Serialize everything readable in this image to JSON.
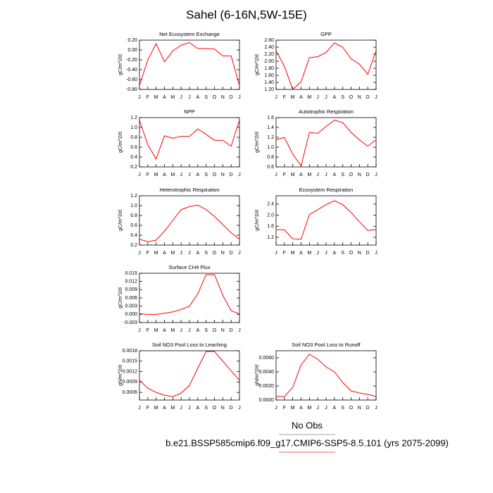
{
  "title": "Sahel (6-16N,5W-15E)",
  "footer": {
    "obs": "No Obs",
    "case": "b.e21.BSSP585cmip6.f09_g17.CMIP6-SSP5-8.5.101 (yrs 2075-2099)"
  },
  "chart_data": [
    {
      "type": "line",
      "title": "Net Ecosystem Exchange",
      "ylabel": "gC/m^2/d",
      "color": "#ff0000",
      "categories": [
        "J",
        "F",
        "M",
        "A",
        "M",
        "J",
        "J",
        "A",
        "S",
        "O",
        "N",
        "D",
        "J"
      ],
      "values": [
        -0.72,
        -0.2,
        0.13,
        -0.24,
        -0.02,
        0.1,
        0.15,
        0.03,
        0.03,
        0.02,
        -0.12,
        -0.12,
        -0.72
      ],
      "ylim": [
        -0.8,
        0.2
      ],
      "yticks": [
        {
          "value": -0.8,
          "label": "-0.80"
        },
        {
          "value": -0.6,
          "label": "-0.60"
        },
        {
          "value": -0.4,
          "label": "-0.40"
        },
        {
          "value": -0.2,
          "label": "-0.20"
        },
        {
          "value": 0,
          "label": "0.00"
        },
        {
          "value": 0.2,
          "label": "0.20"
        }
      ]
    },
    {
      "type": "line",
      "title": "GPP",
      "ylabel": "gC/m^2/d",
      "color": "#ff0000",
      "categories": [
        "J",
        "F",
        "M",
        "A",
        "M",
        "J",
        "J",
        "A",
        "S",
        "O",
        "N",
        "D",
        "J"
      ],
      "values": [
        2.3,
        1.85,
        1.2,
        1.42,
        2.1,
        2.13,
        2.25,
        2.52,
        2.4,
        2.07,
        1.92,
        1.63,
        2.3
      ],
      "ylim": [
        1.2,
        2.6
      ],
      "yticks": [
        {
          "value": 1.2,
          "label": "1.20"
        },
        {
          "value": 1.4,
          "label": "1.40"
        },
        {
          "value": 1.6,
          "label": "1.60"
        },
        {
          "value": 1.8,
          "label": "1.80"
        },
        {
          "value": 2,
          "label": "2.00"
        },
        {
          "value": 2.2,
          "label": "2.20"
        },
        {
          "value": 2.4,
          "label": "2.40"
        },
        {
          "value": 2.6,
          "label": "2.60"
        }
      ]
    },
    {
      "type": "line",
      "title": "NPP",
      "ylabel": "gC/m^2/d",
      "color": "#ff0000",
      "categories": [
        "J",
        "F",
        "M",
        "A",
        "M",
        "J",
        "J",
        "A",
        "S",
        "O",
        "N",
        "D",
        "J"
      ],
      "values": [
        1.15,
        0.65,
        0.36,
        0.83,
        0.78,
        0.82,
        0.82,
        0.97,
        0.86,
        0.74,
        0.74,
        0.62,
        1.15
      ],
      "ylim": [
        0.2,
        1.2
      ],
      "yticks": [
        0.2,
        0.4,
        0.6,
        0.8,
        {
          "value": 1,
          "label": "1.0"
        },
        1.2
      ]
    },
    {
      "type": "line",
      "title": "Autotrophic Respiration",
      "ylabel": "gC/m^2/d",
      "color": "#ff0000",
      "categories": [
        "J",
        "F",
        "M",
        "A",
        "M",
        "J",
        "J",
        "A",
        "S",
        "O",
        "N",
        "D",
        "J"
      ],
      "values": [
        1.15,
        1.2,
        0.86,
        0.62,
        1.3,
        1.28,
        1.42,
        1.55,
        1.5,
        1.3,
        1.15,
        1.02,
        1.15
      ],
      "ylim": [
        0.6,
        1.6
      ],
      "yticks": [
        0.6,
        0.8,
        {
          "value": 1,
          "label": "1.0"
        },
        1.2,
        1.4,
        1.6
      ]
    },
    {
      "type": "line",
      "title": "Heterotrophic Respiration",
      "ylabel": "gC/m^2/d",
      "color": "#ff0000",
      "categories": [
        "J",
        "F",
        "M",
        "A",
        "M",
        "J",
        "J",
        "A",
        "S",
        "O",
        "N",
        "D",
        "J"
      ],
      "values": [
        0.32,
        0.27,
        0.3,
        0.48,
        0.7,
        0.92,
        0.98,
        1.01,
        0.92,
        0.78,
        0.62,
        0.45,
        0.32
      ],
      "ylim": [
        0.2,
        1.2
      ],
      "yticks": [
        0.2,
        0.4,
        0.6,
        0.8,
        {
          "value": 1,
          "label": "1.0"
        },
        1.2
      ]
    },
    {
      "type": "line",
      "title": "Ecosystem Respiration",
      "ylabel": "gC/m^2/d",
      "color": "#ff0000",
      "categories": [
        "J",
        "F",
        "M",
        "A",
        "M",
        "J",
        "J",
        "A",
        "S",
        "O",
        "N",
        "D",
        "J"
      ],
      "values": [
        1.48,
        1.47,
        1.15,
        1.13,
        2.02,
        2.2,
        2.38,
        2.52,
        2.38,
        2.1,
        1.76,
        1.45,
        1.48
      ],
      "ylim": [
        0.92,
        2.7
      ],
      "yticks": [
        1.2,
        1.6,
        {
          "value": 2,
          "label": "2.0"
        },
        2.4
      ]
    },
    {
      "type": "line",
      "title": "Surface CH4 Flux",
      "ylabel": "gC/m^2/d",
      "color": "#ff0000",
      "categories": [
        "J",
        "F",
        "M",
        "A",
        "M",
        "J",
        "J",
        "A",
        "S",
        "O",
        "N",
        "D",
        "J"
      ],
      "values": [
        0.0002,
        0,
        0,
        0.0004,
        0.0009,
        0.0018,
        0.003,
        0.0075,
        0.0145,
        0.0145,
        0.007,
        0.0013,
        0.0002
      ],
      "ylim": [
        -0.003,
        0.015
      ],
      "yticks": [
        -0.003,
        {
          "value": 0,
          "label": "0.000"
        },
        0.003,
        0.006,
        0.009,
        0.012,
        0.015
      ]
    },
    {
      "type": "line",
      "title": "Soil NO3 Pool Loss to Leaching",
      "ylabel": "gN/m^2/d",
      "color": "#ff0000",
      "categories": [
        "J",
        "F",
        "M",
        "A",
        "M",
        "J",
        "J",
        "A",
        "S",
        "O",
        "N",
        "D",
        "J"
      ],
      "values": [
        0.00095,
        0.00072,
        0.0006,
        0.00052,
        0.00048,
        0.00058,
        0.0008,
        0.0013,
        0.00178,
        0.00178,
        0.0015,
        0.00122,
        0.00095
      ],
      "ylim": [
        0.00038,
        0.0018
      ],
      "yticks": [
        0.0006,
        0.0009,
        0.0012,
        0.0015,
        0.0018
      ]
    },
    {
      "type": "line",
      "title": "Soil NO3 Pool Loss to Runoff",
      "ylabel": "gN/m^2/d",
      "color": "#ff0000",
      "categories": [
        "J",
        "F",
        "M",
        "A",
        "M",
        "J",
        "J",
        "A",
        "S",
        "O",
        "N",
        "D",
        "J"
      ],
      "values": [
        0.0005,
        0.0005,
        0.0018,
        0.005,
        0.0065,
        0.0058,
        0.0047,
        0.004,
        0.0025,
        0.0013,
        0.001,
        0.0008,
        0.0005
      ],
      "ylim": [
        0,
        0.007
      ],
      "yticks": [
        {
          "value": 0,
          "label": "0.0000"
        },
        {
          "value": 0.002,
          "label": "0.0020"
        },
        {
          "value": 0.004,
          "label": "0.0040"
        },
        {
          "value": 0.006,
          "label": "0.0060"
        }
      ]
    }
  ]
}
